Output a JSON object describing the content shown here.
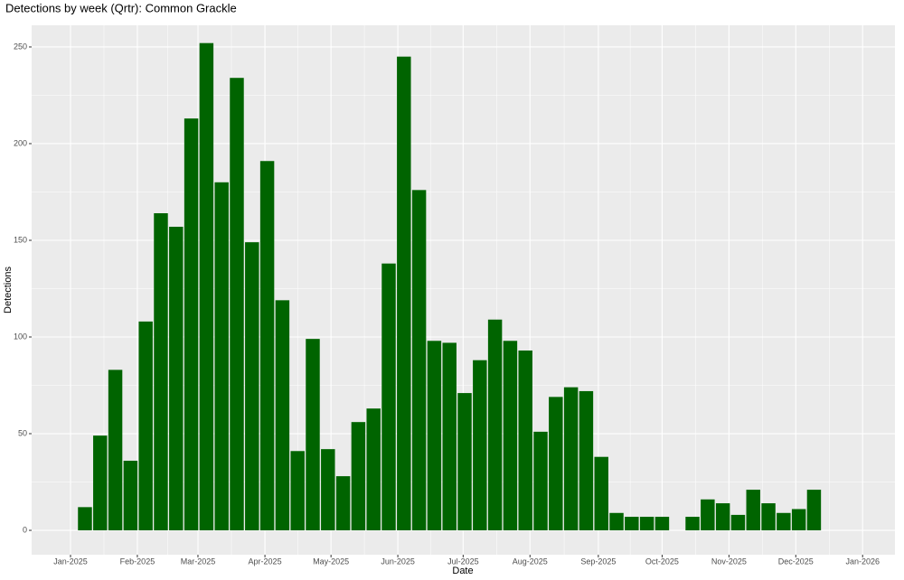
{
  "chart_data": {
    "type": "bar",
    "title": "Detections by week (Qrtr): Common Grackle",
    "x_label": "Date",
    "y_label": "Detections",
    "categories": [
      null,
      null,
      null,
      null,
      null,
      null,
      null,
      null,
      null,
      null,
      null,
      null,
      null,
      null,
      null,
      null,
      null,
      null,
      null,
      null,
      null,
      null,
      null,
      null,
      null,
      null,
      null,
      null,
      null,
      null,
      null,
      null,
      null,
      null,
      null,
      null,
      null,
      null,
      null,
      null,
      null,
      null,
      null,
      null,
      null,
      null,
      null,
      null,
      null
    ],
    "values": [
      12,
      49,
      83,
      36,
      108,
      164,
      157,
      213,
      252,
      180,
      234,
      149,
      191,
      119,
      41,
      99,
      42,
      28,
      56,
      63,
      138,
      245,
      176,
      98,
      97,
      71,
      88,
      109,
      98,
      93,
      51,
      69,
      74,
      72,
      38,
      9,
      7,
      7,
      7,
      null,
      7,
      16,
      14,
      8,
      21,
      14,
      9,
      11,
      21
    ],
    "color": "#006400",
    "xlim": [
      -3.51,
      53.33
    ],
    "xticks": [
      {
        "value": -0.95,
        "label": "Jan-2025"
      },
      {
        "value": 3.45,
        "label": "Feb-2025"
      },
      {
        "value": 7.44,
        "label": "Mar-2025"
      },
      {
        "value": 11.85,
        "label": "Apr-2025"
      },
      {
        "value": 16.2,
        "label": "May-2025"
      },
      {
        "value": 20.6,
        "label": "Jun-2025"
      },
      {
        "value": 24.9,
        "label": "Jul-2025"
      },
      {
        "value": 29.3,
        "label": "Aug-2025"
      },
      {
        "value": 33.8,
        "label": "Sep-2025"
      },
      {
        "value": 38.0,
        "label": "Oct-2025"
      },
      {
        "value": 42.4,
        "label": "Nov-2025"
      },
      {
        "value": 46.8,
        "label": "Dec-2025"
      },
      {
        "value": 51.2,
        "label": "Jan-2026"
      }
    ],
    "ylim": [
      -12.6,
      261.2
    ],
    "yticks": [
      0,
      50,
      100,
      150,
      200,
      250
    ],
    "grid": true
  }
}
